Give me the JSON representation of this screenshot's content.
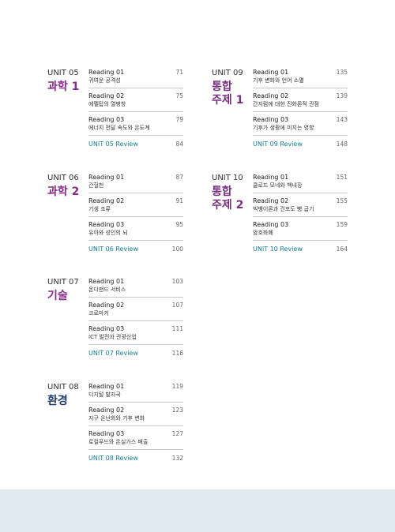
{
  "units": [
    {
      "unit": "UNIT 05",
      "subject": [
        "과학 1"
      ],
      "color": "#8b2b8c",
      "readings": [
        {
          "label": "Reading 01",
          "title": "귀여운 공격성",
          "page": "71"
        },
        {
          "label": "Reading 02",
          "title": "에펠탑의 열팽창",
          "page": "75"
        },
        {
          "label": "Reading 03",
          "title": "에너지 전달 속도와 온도계",
          "page": "79"
        }
      ],
      "review": {
        "label": "UNIT 05 Review",
        "page": "84"
      }
    },
    {
      "unit": "UNIT 06",
      "subject": [
        "과학 2"
      ],
      "color": "#8b2b8c",
      "readings": [
        {
          "label": "Reading 01",
          "title": "간헐천",
          "page": "87"
        },
        {
          "label": "Reading 02",
          "title": "기생 조류",
          "page": "91"
        },
        {
          "label": "Reading 03",
          "title": "유아와 성인의 뇌",
          "page": "95"
        }
      ],
      "review": {
        "label": "UNIT 06 Review",
        "page": "100"
      }
    },
    {
      "unit": "UNIT 07",
      "subject": [
        "기술"
      ],
      "color": "#8b2b8c",
      "readings": [
        {
          "label": "Reading 01",
          "title": "온디맨드 서비스",
          "page": "103"
        },
        {
          "label": "Reading 02",
          "title": "크로마키",
          "page": "107"
        },
        {
          "label": "Reading 03",
          "title": "ICT 발전과 관광산업",
          "page": "111"
        }
      ],
      "review": {
        "label": "UNIT 07 Review",
        "page": "116"
      }
    },
    {
      "unit": "UNIT 08",
      "subject": [
        "환경"
      ],
      "color": "#1e3c70",
      "readings": [
        {
          "label": "Reading 01",
          "title": "디지털 발자국",
          "page": "119"
        },
        {
          "label": "Reading 02",
          "title": "지구 온난화와 기후 변화",
          "page": "123"
        },
        {
          "label": "Reading 03",
          "title": "로컬푸드와 온실가스 배출",
          "page": "127"
        }
      ],
      "review": {
        "label": "UNIT 08 Review",
        "page": "132"
      }
    },
    {
      "unit": "UNIT 09",
      "subject": [
        "통합",
        "주제 1"
      ],
      "color": "#7a2e80",
      "readings": [
        {
          "label": "Reading 01",
          "title": "기후 변화와 언어 소멸",
          "page": "135"
        },
        {
          "label": "Reading 02",
          "title": "간지럼에 대한 진화론적 관점",
          "page": "139"
        },
        {
          "label": "Reading 03",
          "title": "기후가 생활에 미치는 영향",
          "page": "143"
        }
      ],
      "review": {
        "label": "UNIT 09 Review",
        "page": "148"
      }
    },
    {
      "unit": "UNIT 10",
      "subject": [
        "통합",
        "주제 2"
      ],
      "color": "#7a2e80",
      "readings": [
        {
          "label": "Reading 01",
          "title": "클로드 모네와 백내장",
          "page": "151"
        },
        {
          "label": "Reading 02",
          "title": "빅뱅이론과 건포도 빵 굽기",
          "page": "155"
        },
        {
          "label": "Reading 03",
          "title": "암호화폐",
          "page": "159"
        }
      ],
      "review": {
        "label": "UNIT 10 Review",
        "page": "164"
      }
    }
  ]
}
